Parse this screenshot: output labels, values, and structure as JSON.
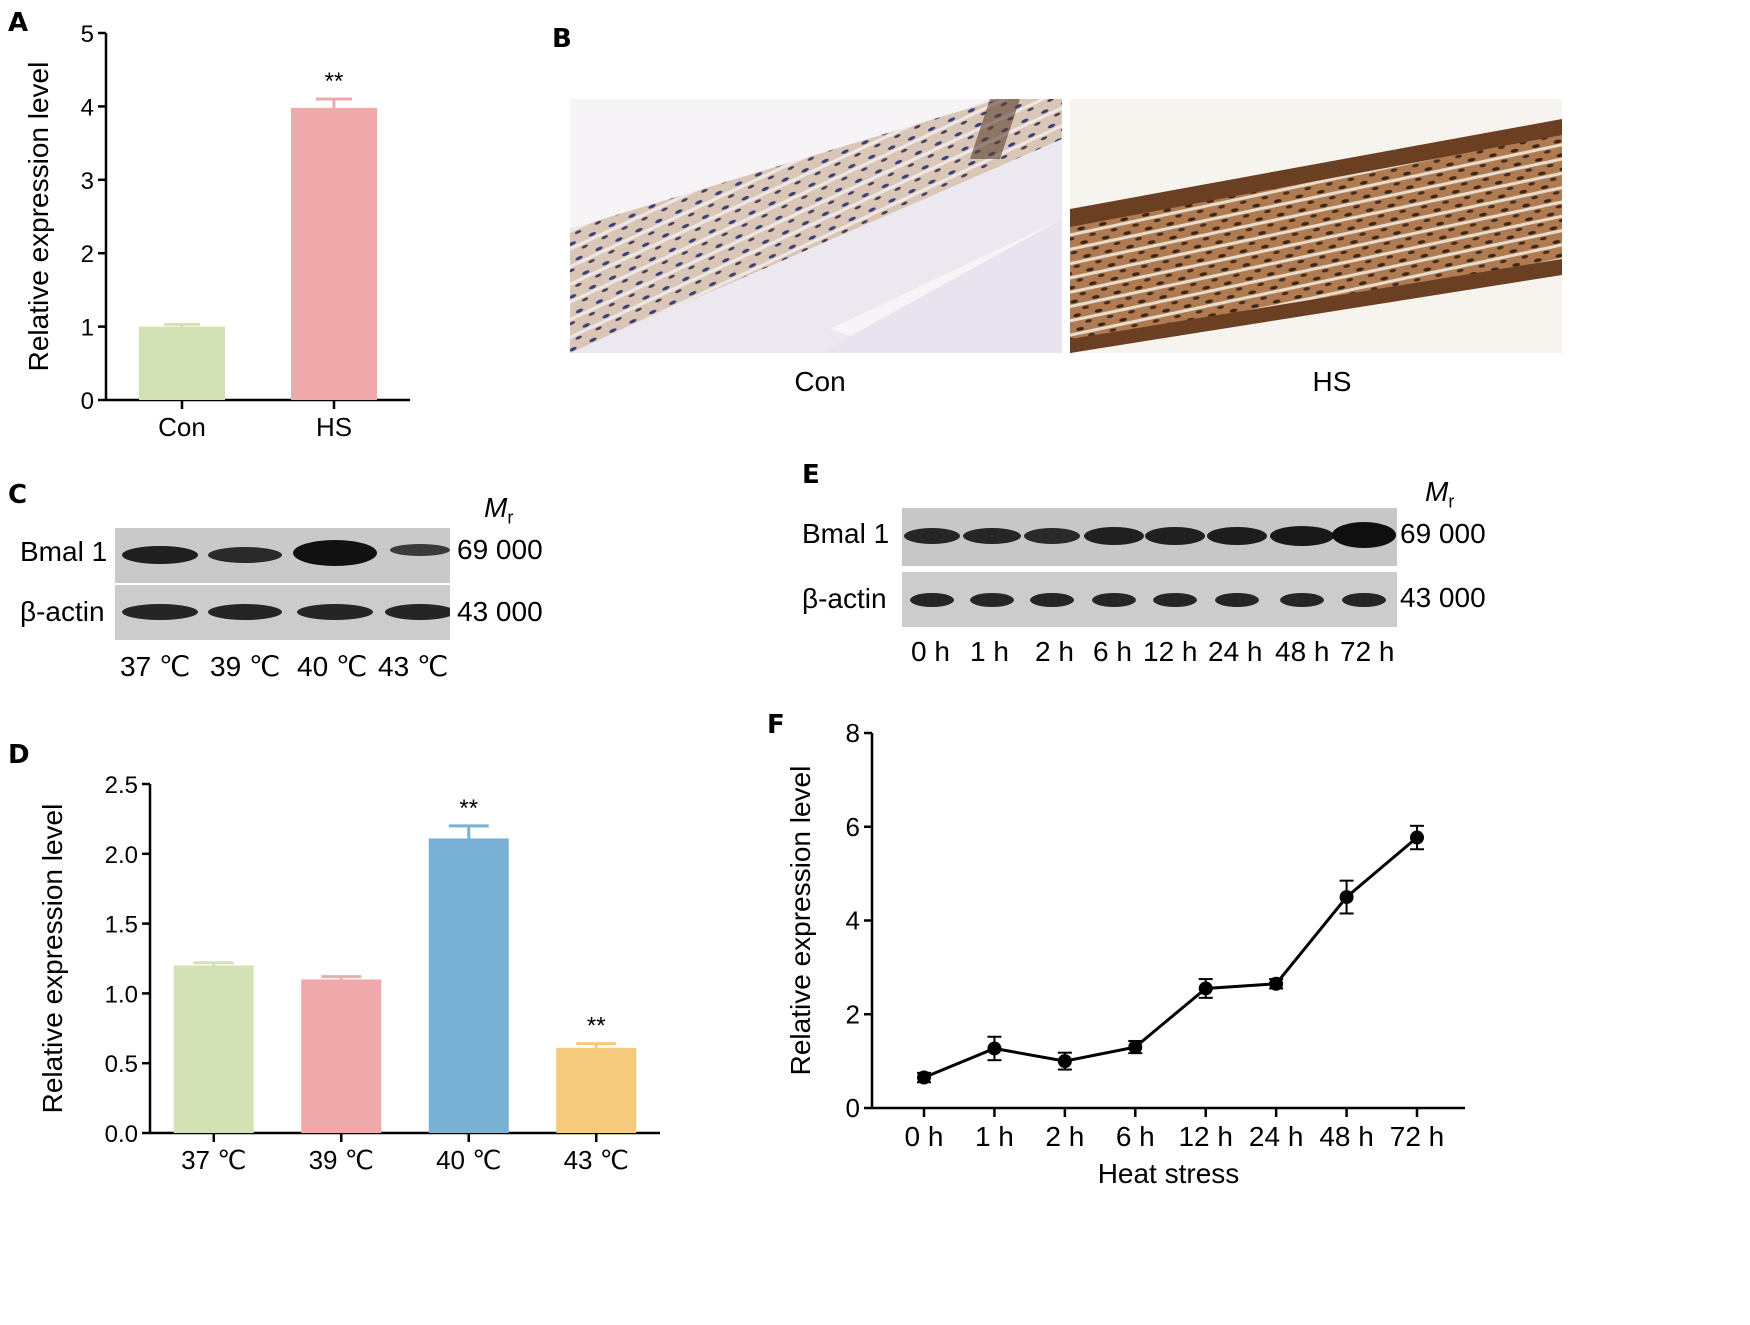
{
  "panels": {
    "a": {
      "label": "A"
    },
    "b": {
      "label": "B",
      "captions": [
        "Con",
        "HS"
      ]
    },
    "c": {
      "label": "C",
      "mr_symbol": "M",
      "mr_sub": "r",
      "rows": [
        {
          "name": "Bmal 1",
          "mw": "69 000"
        },
        {
          "name": "β-actin",
          "mw": "43 000"
        }
      ],
      "lanes": [
        "37 ℃",
        "39 ℃",
        "40 ℃",
        "43 ℃"
      ]
    },
    "d": {
      "label": "D"
    },
    "e": {
      "label": "E",
      "mr_symbol": "M",
      "mr_sub": "r",
      "rows": [
        {
          "name": "Bmal 1",
          "mw": "69 000"
        },
        {
          "name": "β-actin",
          "mw": "43 000"
        }
      ],
      "lanes": [
        "0 h",
        "1 h",
        "2 h",
        "6 h",
        "12 h",
        "24 h",
        "48 h",
        "72 h"
      ]
    },
    "f": {
      "label": "F"
    }
  },
  "chart_data": [
    {
      "panel": "A",
      "type": "bar",
      "categories": [
        "Con",
        "HS"
      ],
      "values": [
        1.0,
        3.98
      ],
      "errors": [
        0.03,
        0.12
      ],
      "annotations": [
        "",
        "**"
      ],
      "ylabel": "Relative expression level",
      "xlabel": "",
      "ylim": [
        0,
        5
      ],
      "yticks": [
        0,
        1,
        2,
        3,
        4,
        5
      ],
      "colors": [
        "#d3e2b4",
        "#f0a9ab"
      ]
    },
    {
      "panel": "D",
      "type": "bar",
      "categories": [
        "37 ℃",
        "39 ℃",
        "40 ℃",
        "43 ℃"
      ],
      "values": [
        1.2,
        1.1,
        2.11,
        0.61
      ],
      "errors": [
        0.02,
        0.02,
        0.09,
        0.03
      ],
      "annotations": [
        "",
        "",
        "**",
        "**"
      ],
      "ylabel": "Relative expression level",
      "xlabel": "",
      "ylim": [
        0,
        2.5
      ],
      "yticks": [
        "0.0",
        "0.5",
        "1.0",
        "1.5",
        "2.0",
        "2.5"
      ],
      "colors": [
        "#d3e2b4",
        "#f0a9ab",
        "#78b1d4",
        "#f5ca7c"
      ]
    },
    {
      "panel": "F",
      "type": "line",
      "x": [
        "0 h",
        "1 h",
        "2 h",
        "6 h",
        "12 h",
        "24 h",
        "48 h",
        "72 h"
      ],
      "values": [
        0.65,
        1.27,
        1.0,
        1.3,
        2.55,
        2.65,
        4.5,
        5.77
      ],
      "errors": [
        0.1,
        0.25,
        0.18,
        0.13,
        0.2,
        0.1,
        0.35,
        0.25
      ],
      "ylabel": "Relative expression level",
      "xlabel": "Heat stress",
      "ylim": [
        0,
        8
      ],
      "yticks": [
        0,
        2,
        4,
        6,
        8
      ],
      "color": "#000000"
    }
  ]
}
